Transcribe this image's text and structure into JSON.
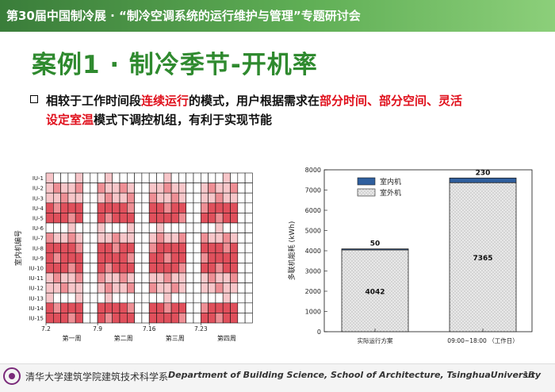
{
  "header": {
    "text": "第30届中国制冷展 · “制冷空调系统的运行维护与管理”专题研讨会"
  },
  "title": "案例1 · 制冷季节-开机率",
  "bullet": {
    "line1": [
      {
        "t": "相较于工作时间段",
        "hl": false
      },
      {
        "t": "连续运行",
        "hl": true
      },
      {
        "t": "的模式，用户根据需求在",
        "hl": false
      },
      {
        "t": "部分时间、部分空间、灵活",
        "hl": true
      }
    ],
    "line2": [
      {
        "t": "设定室温",
        "hl": true
      },
      {
        "t": "模式下调控机组，有利于实现节能",
        "hl": false
      }
    ]
  },
  "heatmap": {
    "ylabel": "室内机编号",
    "rows": [
      "IU-1",
      "IU-2",
      "IU-3",
      "IU-4",
      "IU-5",
      "IU-6",
      "IU-7",
      "IU-8",
      "IU-9",
      "IU-10",
      "IU-11",
      "IU-12",
      "IU-13",
      "IU-14",
      "IU-15"
    ],
    "date_ticks": [
      "7.2",
      "7.9",
      "7.16",
      "7.23"
    ],
    "week_labels": [
      "第一周",
      "第二周",
      "第三周",
      "第四周"
    ],
    "colors": [
      "#ffffff",
      "#f7c6c9",
      "#ee8f95",
      "#e0505c"
    ]
  },
  "chart_data": {
    "type": "bar",
    "categories": [
      "实际运行方案",
      "09:00~18:00 （工作日）"
    ],
    "series": [
      {
        "name": "室外机",
        "values": [
          4042,
          7365
        ]
      },
      {
        "name": "室内机",
        "values": [
          50,
          230
        ]
      }
    ],
    "ylabel": "多联机能耗 (kWh)",
    "ylim": [
      0,
      8000
    ],
    "yticks": [
      "0",
      "1000",
      "2000",
      "3000",
      "4000",
      "5000",
      "6000",
      "7000",
      "8000"
    ],
    "legend_position": "top-left",
    "colors": {
      "outdoor": "#e8e8e8",
      "indoor": "#2f5f9e"
    }
  },
  "footer": {
    "cn": "清华大学建筑学院建筑技术科学系",
    "en": "Department of Building Science, School of Architecture, TsinghuaUniversity",
    "page": "18"
  }
}
